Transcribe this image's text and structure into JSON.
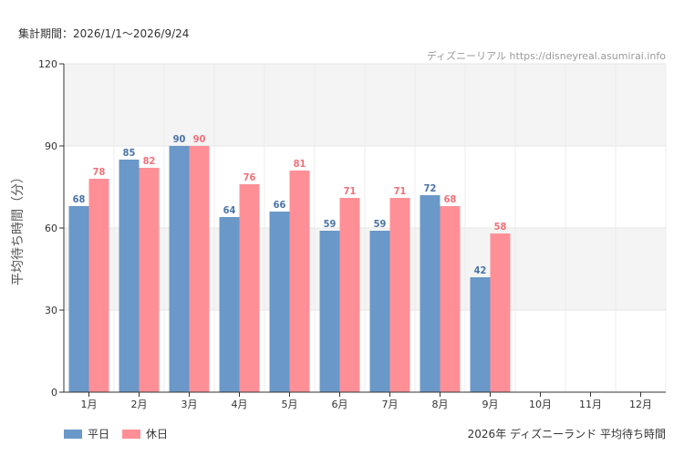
{
  "header": {
    "period": "集計期間：2026/1/1〜2026/9/24",
    "credit": "ディズニーリアル https://disneyreal.asumirai.info"
  },
  "footer": {
    "caption": "2026年 ディズニーランド 平均待ち時間"
  },
  "colors": {
    "weekday": "#6a98c8",
    "holiday": "#ff8f96",
    "weekday_label": "#4a74a8",
    "holiday_label": "#f07078",
    "band": "#f4f4f4"
  },
  "chart_data": {
    "type": "bar",
    "title": "",
    "xlabel": "",
    "ylabel": "平均待ち時間（分）",
    "ylim": [
      0,
      120
    ],
    "yticks": [
      0,
      30,
      60,
      90,
      120
    ],
    "categories": [
      "1月",
      "2月",
      "3月",
      "4月",
      "5月",
      "6月",
      "7月",
      "8月",
      "9月",
      "10月",
      "11月",
      "12月"
    ],
    "series": [
      {
        "name": "平日",
        "values": [
          68,
          85,
          90,
          64,
          66,
          59,
          59,
          72,
          42,
          null,
          null,
          null
        ]
      },
      {
        "name": "休日",
        "values": [
          78,
          82,
          90,
          76,
          81,
          71,
          71,
          68,
          58,
          null,
          null,
          null
        ]
      }
    ],
    "grid": true,
    "legend": "bottom-left"
  }
}
